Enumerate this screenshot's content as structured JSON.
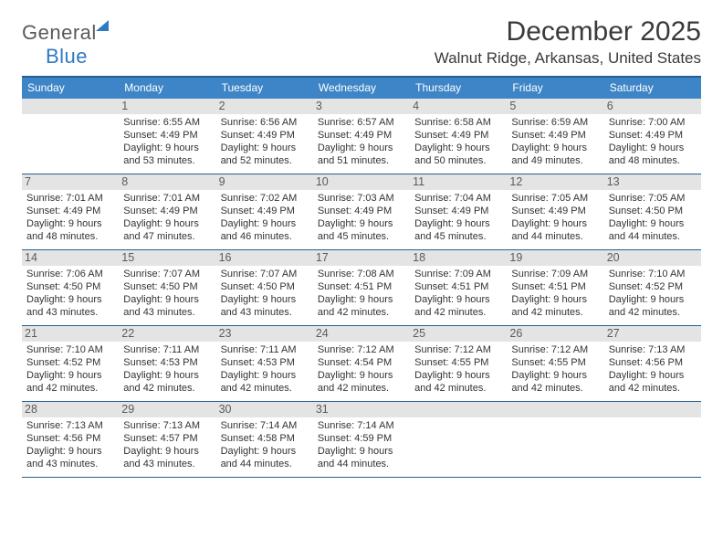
{
  "logo": {
    "word1": "General",
    "word2": "Blue"
  },
  "title": "December 2025",
  "location": "Walnut Ridge, Arkansas, United States",
  "colors": {
    "header_bg": "#3d85c6",
    "border": "#255f92",
    "daynum_bg": "#e4e4e4",
    "text": "#333333"
  },
  "dow": [
    "Sunday",
    "Monday",
    "Tuesday",
    "Wednesday",
    "Thursday",
    "Friday",
    "Saturday"
  ],
  "weeks": [
    [
      {
        "n": "",
        "sr": "",
        "ss": "",
        "dl": ""
      },
      {
        "n": "1",
        "sr": "Sunrise: 6:55 AM",
        "ss": "Sunset: 4:49 PM",
        "dl": "Daylight: 9 hours and 53 minutes."
      },
      {
        "n": "2",
        "sr": "Sunrise: 6:56 AM",
        "ss": "Sunset: 4:49 PM",
        "dl": "Daylight: 9 hours and 52 minutes."
      },
      {
        "n": "3",
        "sr": "Sunrise: 6:57 AM",
        "ss": "Sunset: 4:49 PM",
        "dl": "Daylight: 9 hours and 51 minutes."
      },
      {
        "n": "4",
        "sr": "Sunrise: 6:58 AM",
        "ss": "Sunset: 4:49 PM",
        "dl": "Daylight: 9 hours and 50 minutes."
      },
      {
        "n": "5",
        "sr": "Sunrise: 6:59 AM",
        "ss": "Sunset: 4:49 PM",
        "dl": "Daylight: 9 hours and 49 minutes."
      },
      {
        "n": "6",
        "sr": "Sunrise: 7:00 AM",
        "ss": "Sunset: 4:49 PM",
        "dl": "Daylight: 9 hours and 48 minutes."
      }
    ],
    [
      {
        "n": "7",
        "sr": "Sunrise: 7:01 AM",
        "ss": "Sunset: 4:49 PM",
        "dl": "Daylight: 9 hours and 48 minutes."
      },
      {
        "n": "8",
        "sr": "Sunrise: 7:01 AM",
        "ss": "Sunset: 4:49 PM",
        "dl": "Daylight: 9 hours and 47 minutes."
      },
      {
        "n": "9",
        "sr": "Sunrise: 7:02 AM",
        "ss": "Sunset: 4:49 PM",
        "dl": "Daylight: 9 hours and 46 minutes."
      },
      {
        "n": "10",
        "sr": "Sunrise: 7:03 AM",
        "ss": "Sunset: 4:49 PM",
        "dl": "Daylight: 9 hours and 45 minutes."
      },
      {
        "n": "11",
        "sr": "Sunrise: 7:04 AM",
        "ss": "Sunset: 4:49 PM",
        "dl": "Daylight: 9 hours and 45 minutes."
      },
      {
        "n": "12",
        "sr": "Sunrise: 7:05 AM",
        "ss": "Sunset: 4:49 PM",
        "dl": "Daylight: 9 hours and 44 minutes."
      },
      {
        "n": "13",
        "sr": "Sunrise: 7:05 AM",
        "ss": "Sunset: 4:50 PM",
        "dl": "Daylight: 9 hours and 44 minutes."
      }
    ],
    [
      {
        "n": "14",
        "sr": "Sunrise: 7:06 AM",
        "ss": "Sunset: 4:50 PM",
        "dl": "Daylight: 9 hours and 43 minutes."
      },
      {
        "n": "15",
        "sr": "Sunrise: 7:07 AM",
        "ss": "Sunset: 4:50 PM",
        "dl": "Daylight: 9 hours and 43 minutes."
      },
      {
        "n": "16",
        "sr": "Sunrise: 7:07 AM",
        "ss": "Sunset: 4:50 PM",
        "dl": "Daylight: 9 hours and 43 minutes."
      },
      {
        "n": "17",
        "sr": "Sunrise: 7:08 AM",
        "ss": "Sunset: 4:51 PM",
        "dl": "Daylight: 9 hours and 42 minutes."
      },
      {
        "n": "18",
        "sr": "Sunrise: 7:09 AM",
        "ss": "Sunset: 4:51 PM",
        "dl": "Daylight: 9 hours and 42 minutes."
      },
      {
        "n": "19",
        "sr": "Sunrise: 7:09 AM",
        "ss": "Sunset: 4:51 PM",
        "dl": "Daylight: 9 hours and 42 minutes."
      },
      {
        "n": "20",
        "sr": "Sunrise: 7:10 AM",
        "ss": "Sunset: 4:52 PM",
        "dl": "Daylight: 9 hours and 42 minutes."
      }
    ],
    [
      {
        "n": "21",
        "sr": "Sunrise: 7:10 AM",
        "ss": "Sunset: 4:52 PM",
        "dl": "Daylight: 9 hours and 42 minutes."
      },
      {
        "n": "22",
        "sr": "Sunrise: 7:11 AM",
        "ss": "Sunset: 4:53 PM",
        "dl": "Daylight: 9 hours and 42 minutes."
      },
      {
        "n": "23",
        "sr": "Sunrise: 7:11 AM",
        "ss": "Sunset: 4:53 PM",
        "dl": "Daylight: 9 hours and 42 minutes."
      },
      {
        "n": "24",
        "sr": "Sunrise: 7:12 AM",
        "ss": "Sunset: 4:54 PM",
        "dl": "Daylight: 9 hours and 42 minutes."
      },
      {
        "n": "25",
        "sr": "Sunrise: 7:12 AM",
        "ss": "Sunset: 4:55 PM",
        "dl": "Daylight: 9 hours and 42 minutes."
      },
      {
        "n": "26",
        "sr": "Sunrise: 7:12 AM",
        "ss": "Sunset: 4:55 PM",
        "dl": "Daylight: 9 hours and 42 minutes."
      },
      {
        "n": "27",
        "sr": "Sunrise: 7:13 AM",
        "ss": "Sunset: 4:56 PM",
        "dl": "Daylight: 9 hours and 42 minutes."
      }
    ],
    [
      {
        "n": "28",
        "sr": "Sunrise: 7:13 AM",
        "ss": "Sunset: 4:56 PM",
        "dl": "Daylight: 9 hours and 43 minutes."
      },
      {
        "n": "29",
        "sr": "Sunrise: 7:13 AM",
        "ss": "Sunset: 4:57 PM",
        "dl": "Daylight: 9 hours and 43 minutes."
      },
      {
        "n": "30",
        "sr": "Sunrise: 7:14 AM",
        "ss": "Sunset: 4:58 PM",
        "dl": "Daylight: 9 hours and 44 minutes."
      },
      {
        "n": "31",
        "sr": "Sunrise: 7:14 AM",
        "ss": "Sunset: 4:59 PM",
        "dl": "Daylight: 9 hours and 44 minutes."
      },
      {
        "n": "",
        "sr": "",
        "ss": "",
        "dl": ""
      },
      {
        "n": "",
        "sr": "",
        "ss": "",
        "dl": ""
      },
      {
        "n": "",
        "sr": "",
        "ss": "",
        "dl": ""
      }
    ]
  ]
}
